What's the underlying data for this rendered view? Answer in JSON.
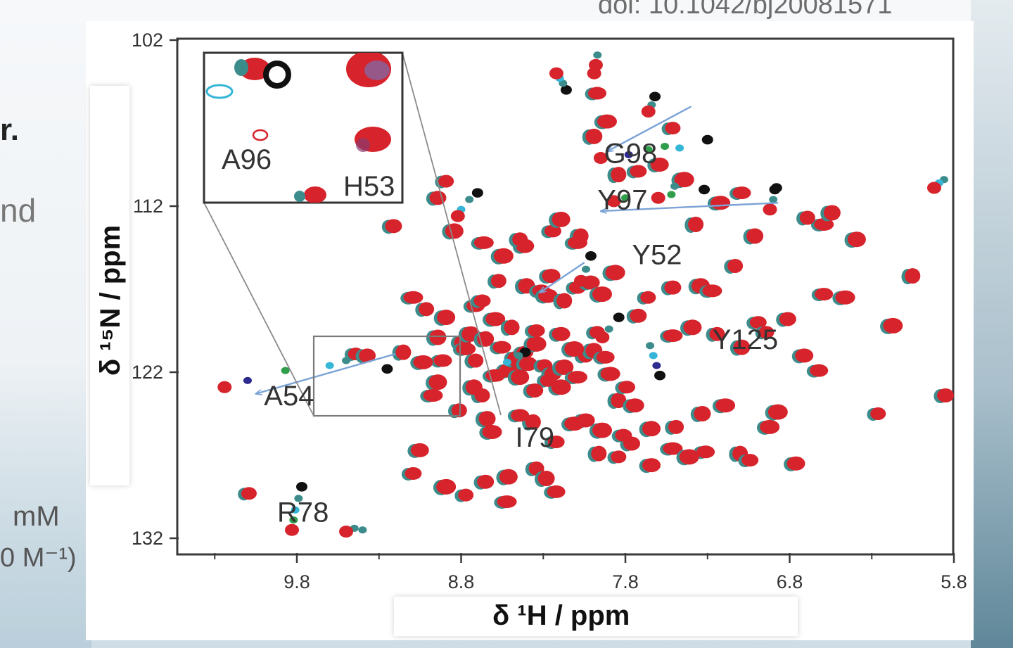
{
  "slide": {
    "doi_text": "doi: 10.1042/bj20081571",
    "fragment_r": "r.",
    "fragment_nd": "nd",
    "fragment_mm": "mM",
    "fragment_m1": "0 M⁻¹)"
  },
  "colors": {
    "red": "#d7232b",
    "teal": "#3d8c8c",
    "cyan": "#36b6d6",
    "green": "#2f9e4b",
    "navy": "#2d2b8e",
    "black": "#111111",
    "arrow": "#7ba3d6"
  },
  "chart_data": {
    "type": "scatter",
    "title": "",
    "xlabel": "δ ¹H / ppm",
    "ylabel": "δ ¹⁵N / ppm",
    "x_reversed": true,
    "y_reversed": true,
    "xlim": [
      10.3,
      5.8
    ],
    "ylim": [
      102,
      132
    ],
    "xticks": [
      "9.8",
      "8.8",
      "7.8",
      "6.8",
      "5.8"
    ],
    "yticks": [
      "102",
      "112",
      "122",
      "132"
    ],
    "peak_labels": [
      {
        "text": "G98",
        "x": 7.93,
        "y": 109.4
      },
      {
        "text": "Y97",
        "x": 7.97,
        "y": 112.2
      },
      {
        "text": "Y52",
        "x": 7.76,
        "y": 115.5
      },
      {
        "text": "Y125",
        "x": 7.27,
        "y": 120.6
      },
      {
        "text": "A54",
        "x": 10.0,
        "y": 124.0
      },
      {
        "text": "I79",
        "x": 8.47,
        "y": 126.5
      },
      {
        "text": "R78",
        "x": 9.92,
        "y": 131.0
      }
    ],
    "inset_labels": [
      {
        "text": "A96"
      },
      {
        "text": "H53"
      }
    ],
    "shift_arrows": [
      {
        "name": "G98",
        "from": [
          7.4,
          106.0
        ],
        "to": [
          7.91,
          108.7
        ]
      },
      {
        "name": "Y97",
        "from": [
          6.87,
          111.8
        ],
        "to": [
          7.95,
          112.3
        ]
      },
      {
        "name": "Y52",
        "from": [
          8.05,
          115.4
        ],
        "to": [
          8.32,
          117.2
        ]
      },
      {
        "name": "A54",
        "from": [
          9.2,
          120.9
        ],
        "to": [
          10.05,
          123.3
        ]
      }
    ],
    "titration_series": [
      {
        "name": "G98",
        "points": [
          [
            7.3,
            108.0
          ],
          [
            7.47,
            108.5
          ],
          [
            7.56,
            108.4
          ],
          [
            7.66,
            108.6
          ],
          [
            7.78,
            108.9
          ],
          [
            7.95,
            109.1
          ]
        ],
        "colors": [
          "black",
          "cyan",
          "green",
          "green",
          "navy",
          "red"
        ]
      },
      {
        "name": "A54",
        "points": [
          [
            9.25,
            121.8
          ],
          [
            9.5,
            121.3
          ],
          [
            9.6,
            121.6
          ],
          [
            9.87,
            121.9
          ],
          [
            10.1,
            122.5
          ],
          [
            10.24,
            122.9
          ]
        ],
        "colors": [
          "black",
          "teal",
          "cyan",
          "green",
          "navy",
          "red"
        ]
      },
      {
        "name": "Y97",
        "points": [
          [
            6.89,
            111.0
          ],
          [
            7.52,
            111.3
          ],
          [
            7.8,
            111.5
          ],
          [
            7.87,
            111.7
          ]
        ],
        "colors": [
          "black",
          "green",
          "green",
          "red"
        ]
      },
      {
        "name": "R78",
        "points": [
          [
            9.77,
            128.9
          ],
          [
            9.79,
            129.6
          ],
          [
            9.81,
            130.3
          ],
          [
            9.82,
            130.9
          ],
          [
            9.83,
            131.5
          ]
        ],
        "colors": [
          "black",
          "teal",
          "cyan",
          "green",
          "red"
        ]
      },
      {
        "name": "Y125",
        "points": [
          [
            7.59,
            122.2
          ],
          [
            7.61,
            121.6
          ],
          [
            7.63,
            121.0
          ],
          [
            7.65,
            120.4
          ]
        ],
        "colors": [
          "black",
          "navy",
          "cyan",
          "teal"
        ]
      },
      {
        "name": "T1",
        "points": [
          [
            8.7,
            111.2
          ],
          [
            8.75,
            111.6
          ],
          [
            8.8,
            112.2
          ],
          [
            8.82,
            112.6
          ]
        ],
        "colors": [
          "black",
          "teal",
          "cyan",
          "red"
        ]
      },
      {
        "name": "T2",
        "points": [
          [
            8.16,
            105.0
          ],
          [
            8.18,
            104.6
          ],
          [
            8.2,
            104.3
          ],
          [
            8.22,
            104.0
          ]
        ],
        "colors": [
          "black",
          "teal",
          "cyan",
          "red"
        ]
      },
      {
        "name": "T3",
        "points": [
          [
            8.01,
            115.0
          ],
          [
            8.04,
            115.8
          ],
          [
            8.07,
            116.5
          ]
        ],
        "colors": [
          "black",
          "teal",
          "red"
        ]
      },
      {
        "name": "T4",
        "points": [
          [
            7.32,
            111.0
          ],
          [
            7.5,
            110.8
          ],
          [
            7.6,
            111.5
          ]
        ],
        "colors": [
          "black",
          "teal",
          "red"
        ]
      },
      {
        "name": "T5",
        "points": [
          [
            6.88,
            110.9
          ],
          [
            6.9,
            111.6
          ],
          [
            6.92,
            112.2
          ]
        ],
        "colors": [
          "black",
          "teal",
          "red"
        ]
      },
      {
        "name": "T6",
        "points": [
          [
            5.86,
            110.4
          ],
          [
            5.89,
            110.6
          ],
          [
            5.92,
            110.9
          ]
        ],
        "colors": [
          "teal",
          "cyan",
          "red"
        ]
      },
      {
        "name": "T7",
        "points": [
          [
            7.97,
            102.9
          ],
          [
            7.98,
            103.5
          ],
          [
            7.99,
            104.0
          ]
        ],
        "colors": [
          "teal",
          "red",
          "red"
        ]
      },
      {
        "name": "T8",
        "points": [
          [
            7.84,
            118.7
          ],
          [
            7.9,
            119.4
          ],
          [
            7.94,
            119.9
          ]
        ],
        "colors": [
          "black",
          "teal",
          "red"
        ]
      },
      {
        "name": "T9",
        "points": [
          [
            7.62,
            105.4
          ],
          [
            7.64,
            105.9
          ],
          [
            7.66,
            106.3
          ]
        ],
        "colors": [
          "black",
          "teal",
          "red"
        ]
      },
      {
        "name": "T10",
        "points": [
          [
            8.41,
            120.8
          ],
          [
            8.45,
            121.0
          ],
          [
            8.52,
            121.4
          ]
        ],
        "colors": [
          "black",
          "teal",
          "cyan"
        ]
      },
      {
        "name": "T11",
        "points": [
          [
            9.4,
            131.5
          ],
          [
            9.45,
            131.4
          ],
          [
            9.5,
            131.6
          ]
        ],
        "colors": [
          "teal",
          "teal",
          "red"
        ]
      }
    ],
    "reference_peaks": [
      [
        10.1,
        129.3
      ],
      [
        9.22,
        113.2
      ],
      [
        8.85,
        113.5
      ],
      [
        8.67,
        114.2
      ],
      [
        8.58,
        116.5
      ],
      [
        8.41,
        116.8
      ],
      [
        8.32,
        117.1
      ],
      [
        8.28,
        117.4
      ],
      [
        8.18,
        117.7
      ],
      [
        8.1,
        116.9
      ],
      [
        8.02,
        116.6
      ],
      [
        7.95,
        117.3
      ],
      [
        7.67,
        117.5
      ],
      [
        7.52,
        116.9
      ],
      [
        7.35,
        116.8
      ],
      [
        7.28,
        117.1
      ],
      [
        7.14,
        115.6
      ],
      [
        7.02,
        113.8
      ],
      [
        6.6,
        117.3
      ],
      [
        6.47,
        117.5
      ],
      [
        6.06,
        116.2
      ],
      [
        7.0,
        119.0
      ],
      [
        6.72,
        121.0
      ],
      [
        6.88,
        124.4
      ],
      [
        6.95,
        119.6
      ],
      [
        6.82,
        118.8
      ],
      [
        6.4,
        114.0
      ],
      [
        6.6,
        113.1
      ],
      [
        6.7,
        112.7
      ],
      [
        6.55,
        112.4
      ],
      [
        7.1,
        111.2
      ],
      [
        7.23,
        111.8
      ],
      [
        7.38,
        113.1
      ],
      [
        7.73,
        109.9
      ],
      [
        7.6,
        109.5
      ],
      [
        7.45,
        110.4
      ],
      [
        7.52,
        107.3
      ],
      [
        8.8,
        120.2
      ],
      [
        8.75,
        119.7
      ],
      [
        8.78,
        120.6
      ],
      [
        8.72,
        121.3
      ],
      [
        8.66,
        120.0
      ],
      [
        8.56,
        120.5
      ],
      [
        8.52,
        121.9
      ],
      [
        8.48,
        121.2
      ],
      [
        8.42,
        120.8
      ],
      [
        8.4,
        121.5
      ],
      [
        8.35,
        120.3
      ],
      [
        8.3,
        121.6
      ],
      [
        8.25,
        122.1
      ],
      [
        8.18,
        121.7
      ],
      [
        8.1,
        122.3
      ],
      [
        8.05,
        121.0
      ],
      [
        8.0,
        120.7
      ],
      [
        7.93,
        121.1
      ],
      [
        7.9,
        122.1
      ],
      [
        7.85,
        123.7
      ],
      [
        7.8,
        122.9
      ],
      [
        7.75,
        124.0
      ],
      [
        8.2,
        122.9
      ],
      [
        8.28,
        122.5
      ],
      [
        8.36,
        123.1
      ],
      [
        8.45,
        122.3
      ],
      [
        8.6,
        122.2
      ],
      [
        8.68,
        123.4
      ],
      [
        8.73,
        122.9
      ],
      [
        8.92,
        121.3
      ],
      [
        9.04,
        121.4
      ],
      [
        9.16,
        120.8
      ],
      [
        9.1,
        128.1
      ],
      [
        9.06,
        126.7
      ],
      [
        8.9,
        128.9
      ],
      [
        8.78,
        129.4
      ],
      [
        8.66,
        128.6
      ],
      [
        8.52,
        128.3
      ],
      [
        8.53,
        129.8
      ],
      [
        8.35,
        127.8
      ],
      [
        8.29,
        128.4
      ],
      [
        8.23,
        129.2
      ],
      [
        8.62,
        125.6
      ],
      [
        8.37,
        125.0
      ],
      [
        8.23,
        126.2
      ],
      [
        8.05,
        124.9
      ],
      [
        7.95,
        125.5
      ],
      [
        7.85,
        127.1
      ],
      [
        7.77,
        126.3
      ],
      [
        7.65,
        125.4
      ],
      [
        7.52,
        126.6
      ],
      [
        7.5,
        125.3
      ],
      [
        7.34,
        124.5
      ],
      [
        7.32,
        126.8
      ],
      [
        7.2,
        124.0
      ],
      [
        7.11,
        126.9
      ],
      [
        7.05,
        127.3
      ],
      [
        6.77,
        127.5
      ],
      [
        6.18,
        119.2
      ],
      [
        6.27,
        124.5
      ],
      [
        5.86,
        123.4
      ],
      [
        8.9,
        118.7
      ],
      [
        9.1,
        117.5
      ],
      [
        9.02,
        118.2
      ],
      [
        8.95,
        119.9
      ],
      [
        8.72,
        118.0
      ],
      [
        8.6,
        118.8
      ],
      [
        8.5,
        119.3
      ],
      [
        8.35,
        119.5
      ],
      [
        8.2,
        119.7
      ],
      [
        8.12,
        120.6
      ],
      [
        7.98,
        119.6
      ],
      [
        7.73,
        118.6
      ],
      [
        7.4,
        119.3
      ],
      [
        7.52,
        119.8
      ],
      [
        7.25,
        119.7
      ],
      [
        7.1,
        120.5
      ],
      [
        6.63,
        121.9
      ],
      [
        6.93,
        125.3
      ],
      [
        8.08,
        113.8
      ],
      [
        8.25,
        113.5
      ],
      [
        8.42,
        114.4
      ],
      [
        8.55,
        115.0
      ],
      [
        8.9,
        110.5
      ],
      [
        8.95,
        111.5
      ],
      [
        8.2,
        112.8
      ],
      [
        8.1,
        114.2
      ],
      [
        8.45,
        114.0
      ],
      [
        8.0,
        107.8
      ],
      [
        7.98,
        105.2
      ],
      [
        7.92,
        106.9
      ],
      [
        7.85,
        110.1
      ],
      [
        8.68,
        117.7
      ],
      [
        8.26,
        116.2
      ],
      [
        7.87,
        116.0
      ],
      [
        9.45,
        120.9
      ],
      [
        9.38,
        121.0
      ],
      [
        8.95,
        122.6
      ],
      [
        8.98,
        123.4
      ],
      [
        8.82,
        124.3
      ],
      [
        8.65,
        124.8
      ],
      [
        8.45,
        124.6
      ],
      [
        8.12,
        125.1
      ],
      [
        7.97,
        126.9
      ],
      [
        7.82,
        125.8
      ],
      [
        7.65,
        127.6
      ],
      [
        7.42,
        127.1
      ]
    ]
  }
}
